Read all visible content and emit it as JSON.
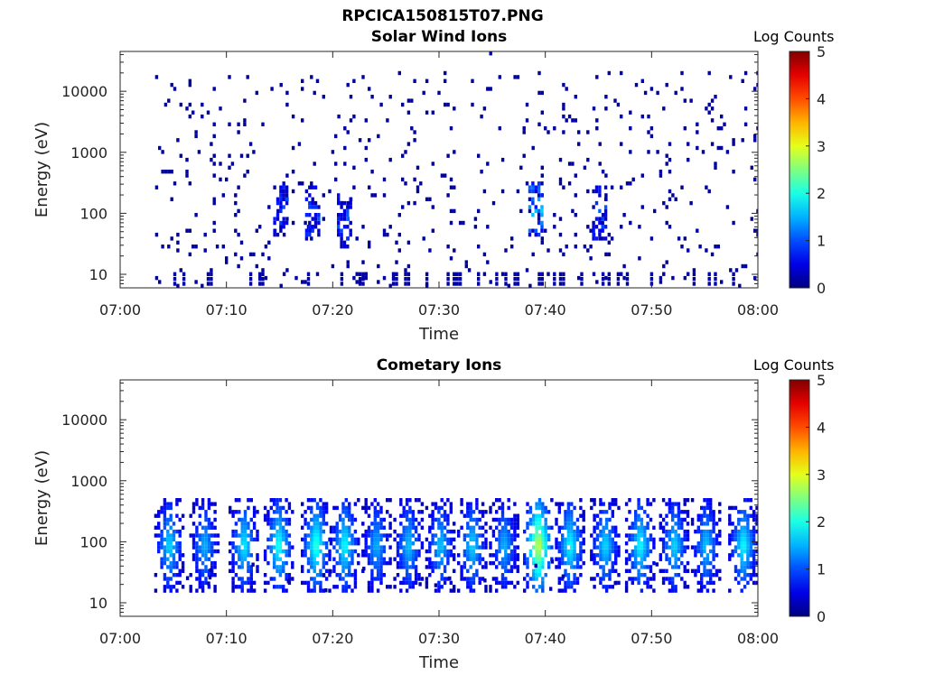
{
  "figure": {
    "title": "RPCICA150815T07.PNG"
  },
  "colorbar": {
    "label": "Log Counts",
    "ticks": [
      "0",
      "1",
      "2",
      "3",
      "4",
      "5"
    ]
  },
  "chart_data": [
    {
      "type": "heatmap",
      "title": "Solar Wind Ions",
      "xlabel": "Time",
      "ylabel": "Energy (eV)",
      "xticks": [
        "07:00",
        "07:10",
        "07:20",
        "07:30",
        "07:40",
        "07:50",
        "08:00"
      ],
      "xlim": [
        "07:00",
        "08:00"
      ],
      "yscale": "log",
      "yticks": [
        "10",
        "100",
        "1000",
        "10000"
      ],
      "ylim": [
        6,
        45000
      ],
      "color_scale": "jet",
      "clim": [
        0,
        5
      ],
      "data_start": "07:03",
      "features": [
        {
          "time": "07:15",
          "energy_eV": 120,
          "log_counts": 1.0
        },
        {
          "time": "07:18",
          "energy_eV": 100,
          "log_counts": 1.0
        },
        {
          "time": "07:21",
          "energy_eV": 80,
          "log_counts": 1.0
        },
        {
          "time": "07:39",
          "energy_eV": 110,
          "log_counts": 1.6
        },
        {
          "time": "07:45",
          "energy_eV": 100,
          "log_counts": 1.0
        }
      ]
    },
    {
      "type": "heatmap",
      "title": "Cometary Ions",
      "xlabel": "Time",
      "ylabel": "Energy (eV)",
      "xticks": [
        "07:00",
        "07:10",
        "07:20",
        "07:30",
        "07:40",
        "07:50",
        "08:00"
      ],
      "xlim": [
        "07:00",
        "08:00"
      ],
      "yscale": "log",
      "yticks": [
        "10",
        "100",
        "1000",
        "10000"
      ],
      "ylim": [
        6,
        45000
      ],
      "color_scale": "jet",
      "clim": [
        0,
        5
      ],
      "data_start": "07:03",
      "energy_range_eV": [
        15,
        500
      ],
      "bursts": [
        {
          "time": "07:04.5",
          "peak_log_counts": 1.8
        },
        {
          "time": "07:07.8",
          "peak_log_counts": 1.6
        },
        {
          "time": "07:11.5",
          "peak_log_counts": 1.9
        },
        {
          "time": "07:14.8",
          "peak_log_counts": 2.1
        },
        {
          "time": "07:18.3",
          "peak_log_counts": 2.2
        },
        {
          "time": "07:21.0",
          "peak_log_counts": 2.0
        },
        {
          "time": "07:24.0",
          "peak_log_counts": 1.6
        },
        {
          "time": "07:27.0",
          "peak_log_counts": 1.7
        },
        {
          "time": "07:30.0",
          "peak_log_counts": 1.7
        },
        {
          "time": "07:33.0",
          "peak_log_counts": 1.8
        },
        {
          "time": "07:36.0",
          "peak_log_counts": 1.6
        },
        {
          "time": "07:39.2",
          "peak_log_counts": 3.0
        },
        {
          "time": "07:42.2",
          "peak_log_counts": 2.0
        },
        {
          "time": "07:45.5",
          "peak_log_counts": 1.8
        },
        {
          "time": "07:48.8",
          "peak_log_counts": 2.0
        },
        {
          "time": "07:52.0",
          "peak_log_counts": 1.8
        },
        {
          "time": "07:55.0",
          "peak_log_counts": 1.7
        },
        {
          "time": "07:58.5",
          "peak_log_counts": 2.0
        }
      ]
    }
  ]
}
